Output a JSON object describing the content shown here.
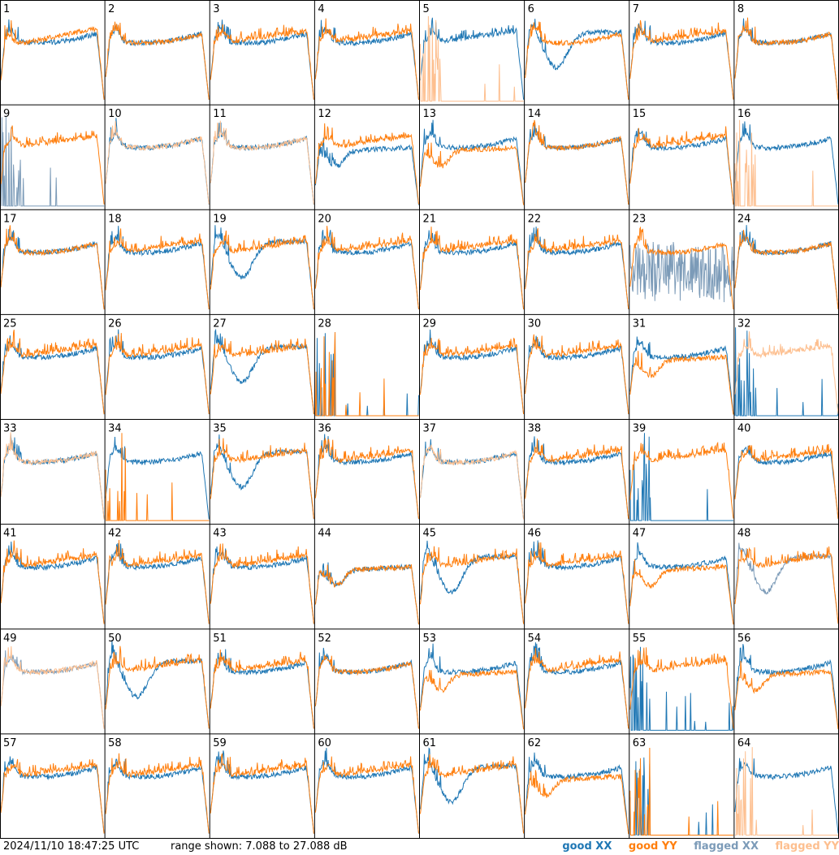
{
  "chart_data": {
    "type": "line",
    "grid": {
      "rows": 8,
      "cols": 8
    },
    "panels": [
      {
        "id": "1",
        "xx": "good",
        "yy": "good",
        "xx_profile": "flat",
        "yy_profile": "rise"
      },
      {
        "id": "2",
        "xx": "good",
        "yy": "good",
        "xx_profile": "flat",
        "yy_profile": "flat"
      },
      {
        "id": "3",
        "xx": "good",
        "yy": "good",
        "xx_profile": "flat",
        "yy_profile": "spiky"
      },
      {
        "id": "4",
        "xx": "good",
        "yy": "good",
        "xx_profile": "flat",
        "yy_profile": "spiky"
      },
      {
        "id": "5",
        "xx": "good",
        "yy": "flagged",
        "xx_profile": "spiky",
        "yy_profile": "dead"
      },
      {
        "id": "6",
        "xx": "good",
        "yy": "good",
        "xx_profile": "sag",
        "yy_profile": "flat"
      },
      {
        "id": "7",
        "xx": "good",
        "yy": "good",
        "xx_profile": "flat",
        "yy_profile": "spiky"
      },
      {
        "id": "8",
        "xx": "good",
        "yy": "good",
        "xx_profile": "flat",
        "yy_profile": "flat"
      },
      {
        "id": "9",
        "xx": "flagged",
        "yy": "good",
        "xx_profile": "dead",
        "yy_profile": "spiky"
      },
      {
        "id": "10",
        "xx": "good",
        "yy": "flagged",
        "xx_profile": "flat",
        "yy_profile": "flat"
      },
      {
        "id": "11",
        "xx": "good",
        "yy": "flagged",
        "xx_profile": "flat",
        "yy_profile": "flat"
      },
      {
        "id": "12",
        "xx": "good",
        "yy": "good",
        "xx_profile": "dip",
        "yy_profile": "spiky"
      },
      {
        "id": "13",
        "xx": "good",
        "yy": "good",
        "xx_profile": "flat",
        "yy_profile": "dip"
      },
      {
        "id": "14",
        "xx": "good",
        "yy": "good",
        "xx_profile": "flat",
        "yy_profile": "flat"
      },
      {
        "id": "15",
        "xx": "good",
        "yy": "good",
        "xx_profile": "flat",
        "yy_profile": "spiky"
      },
      {
        "id": "16",
        "xx": "good",
        "yy": "flagged",
        "xx_profile": "flat",
        "yy_profile": "dead"
      },
      {
        "id": "17",
        "xx": "good",
        "yy": "good",
        "xx_profile": "flat",
        "yy_profile": "flat"
      },
      {
        "id": "18",
        "xx": "good",
        "yy": "good",
        "xx_profile": "flat",
        "yy_profile": "spiky"
      },
      {
        "id": "19",
        "xx": "good",
        "yy": "good",
        "xx_profile": "sag",
        "yy_profile": "spiky"
      },
      {
        "id": "20",
        "xx": "good",
        "yy": "good",
        "xx_profile": "flat",
        "yy_profile": "spiky"
      },
      {
        "id": "21",
        "xx": "good",
        "yy": "good",
        "xx_profile": "flat",
        "yy_profile": "spiky"
      },
      {
        "id": "22",
        "xx": "good",
        "yy": "good",
        "xx_profile": "flat",
        "yy_profile": "spiky"
      },
      {
        "id": "23",
        "xx": "flagged",
        "yy": "good",
        "xx_profile": "noisy",
        "yy_profile": "flat"
      },
      {
        "id": "24",
        "xx": "good",
        "yy": "good",
        "xx_profile": "flat",
        "yy_profile": "flat"
      },
      {
        "id": "25",
        "xx": "good",
        "yy": "good",
        "xx_profile": "flat",
        "yy_profile": "spiky"
      },
      {
        "id": "26",
        "xx": "good",
        "yy": "good",
        "xx_profile": "flat",
        "yy_profile": "spiky"
      },
      {
        "id": "27",
        "xx": "good",
        "yy": "good",
        "xx_profile": "sag",
        "yy_profile": "spiky"
      },
      {
        "id": "28",
        "xx": "good",
        "yy": "good",
        "xx_profile": "dead",
        "yy_profile": "dead"
      },
      {
        "id": "29",
        "xx": "good",
        "yy": "good",
        "xx_profile": "flat",
        "yy_profile": "spiky"
      },
      {
        "id": "30",
        "xx": "good",
        "yy": "good",
        "xx_profile": "flat",
        "yy_profile": "spiky"
      },
      {
        "id": "31",
        "xx": "good",
        "yy": "good",
        "xx_profile": "flat",
        "yy_profile": "dip"
      },
      {
        "id": "32",
        "xx": "good",
        "yy": "flagged",
        "xx_profile": "dead",
        "yy_profile": "spiky"
      },
      {
        "id": "33",
        "xx": "good",
        "yy": "flagged",
        "xx_profile": "flat",
        "yy_profile": "flat"
      },
      {
        "id": "34",
        "xx": "good",
        "yy": "good",
        "xx_profile": "flat",
        "yy_profile": "dead"
      },
      {
        "id": "35",
        "xx": "good",
        "yy": "good",
        "xx_profile": "sag",
        "yy_profile": "spiky"
      },
      {
        "id": "36",
        "xx": "good",
        "yy": "good",
        "xx_profile": "flat",
        "yy_profile": "spiky"
      },
      {
        "id": "37",
        "xx": "good",
        "yy": "flagged",
        "xx_profile": "flat",
        "yy_profile": "flat"
      },
      {
        "id": "38",
        "xx": "good",
        "yy": "good",
        "xx_profile": "flat",
        "yy_profile": "spiky"
      },
      {
        "id": "39",
        "xx": "good",
        "yy": "good",
        "xx_profile": "dead",
        "yy_profile": "spiky"
      },
      {
        "id": "40",
        "xx": "good",
        "yy": "good",
        "xx_profile": "flat",
        "yy_profile": "spiky"
      },
      {
        "id": "41",
        "xx": "good",
        "yy": "good",
        "xx_profile": "flat",
        "yy_profile": "spiky"
      },
      {
        "id": "42",
        "xx": "good",
        "yy": "good",
        "xx_profile": "flat",
        "yy_profile": "spiky"
      },
      {
        "id": "43",
        "xx": "good",
        "yy": "good",
        "xx_profile": "flat",
        "yy_profile": "spiky"
      },
      {
        "id": "44",
        "xx": "good",
        "yy": "good",
        "xx_profile": "dip",
        "yy_profile": "dip"
      },
      {
        "id": "45",
        "xx": "good",
        "yy": "good",
        "xx_profile": "sag",
        "yy_profile": "spiky"
      },
      {
        "id": "46",
        "xx": "good",
        "yy": "good",
        "xx_profile": "flat",
        "yy_profile": "spiky"
      },
      {
        "id": "47",
        "xx": "good",
        "yy": "good",
        "xx_profile": "flat",
        "yy_profile": "dip"
      },
      {
        "id": "48",
        "xx": "flagged",
        "yy": "good",
        "xx_profile": "sag",
        "yy_profile": "spiky"
      },
      {
        "id": "49",
        "xx": "flagged",
        "yy": "flagged",
        "xx_profile": "flat",
        "yy_profile": "flat"
      },
      {
        "id": "50",
        "xx": "good",
        "yy": "good",
        "xx_profile": "sag",
        "yy_profile": "spiky"
      },
      {
        "id": "51",
        "xx": "good",
        "yy": "good",
        "xx_profile": "flat",
        "yy_profile": "spiky"
      },
      {
        "id": "52",
        "xx": "good",
        "yy": "good",
        "xx_profile": "flat",
        "yy_profile": "flat"
      },
      {
        "id": "53",
        "xx": "good",
        "yy": "good",
        "xx_profile": "flat",
        "yy_profile": "dip"
      },
      {
        "id": "54",
        "xx": "good",
        "yy": "good",
        "xx_profile": "flat",
        "yy_profile": "spiky"
      },
      {
        "id": "55",
        "xx": "good",
        "yy": "good",
        "xx_profile": "dead",
        "yy_profile": "spiky"
      },
      {
        "id": "56",
        "xx": "good",
        "yy": "good",
        "xx_profile": "flat",
        "yy_profile": "dip"
      },
      {
        "id": "57",
        "xx": "good",
        "yy": "good",
        "xx_profile": "flat",
        "yy_profile": "spiky"
      },
      {
        "id": "58",
        "xx": "good",
        "yy": "good",
        "xx_profile": "flat",
        "yy_profile": "spiky"
      },
      {
        "id": "59",
        "xx": "good",
        "yy": "good",
        "xx_profile": "flat",
        "yy_profile": "spiky"
      },
      {
        "id": "60",
        "xx": "good",
        "yy": "good",
        "xx_profile": "flat",
        "yy_profile": "spiky"
      },
      {
        "id": "61",
        "xx": "good",
        "yy": "good",
        "xx_profile": "sag",
        "yy_profile": "spiky"
      },
      {
        "id": "62",
        "xx": "good",
        "yy": "good",
        "xx_profile": "flat",
        "yy_profile": "dip"
      },
      {
        "id": "63",
        "xx": "good",
        "yy": "good",
        "xx_profile": "dead",
        "yy_profile": "dead"
      },
      {
        "id": "64",
        "xx": "good",
        "yy": "flagged",
        "xx_profile": "flat",
        "yy_profile": "dead"
      }
    ],
    "range_db": [
      7.088,
      27.088
    ],
    "legend_placement": "bottom-right"
  },
  "colors": {
    "good_xx": "#1f77b4",
    "good_yy": "#ff7f0e",
    "flagged_xx": "#7c9bb8",
    "flagged_yy": "#fdbf8f",
    "grid_line": "#000000"
  },
  "footer": {
    "timestamp": "2024/11/10 18:47:25 UTC",
    "range_text": "range shown: 7.088 to 27.088 dB",
    "legend": {
      "good_xx": "good XX",
      "good_yy": "good YY",
      "flagged_xx": "flagged XX",
      "flagged_yy": "flagged YY"
    }
  }
}
